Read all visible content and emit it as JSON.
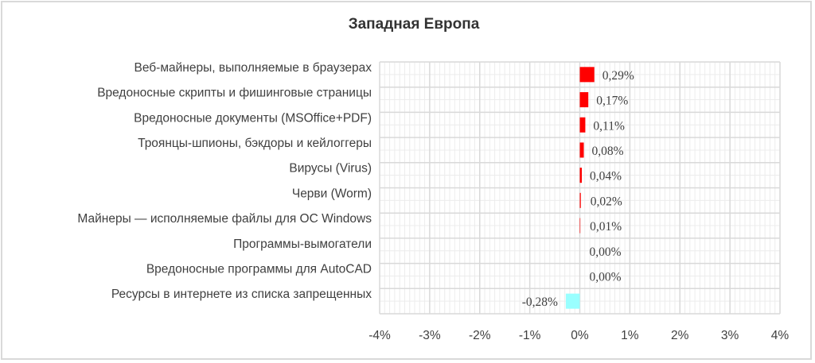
{
  "chart_data": {
    "type": "bar",
    "orientation": "horizontal",
    "title": "Западная Европа",
    "categories": [
      "Веб-майнеры, выполняемые в браузерах",
      "Вредоносные скрипты и фишинговые страницы",
      "Вредоносные документы (MSOffice+PDF)",
      "Троянцы-шпионы, бэкдоры и кейлоггеры",
      "Вирусы (Virus)",
      "Черви (Worm)",
      "Майнеры — исполняемые файлы для ОС Windows",
      "Программы-вымогатели",
      "Вредоносные программы для AutoCAD",
      "Ресурсы в интернете из списка запрещенных"
    ],
    "values": [
      0.29,
      0.17,
      0.11,
      0.08,
      0.04,
      0.02,
      0.01,
      0.0,
      0.0,
      -0.28
    ],
    "data_labels": [
      "0,29%",
      "0,17%",
      "0,11%",
      "0,08%",
      "0,04%",
      "0,02%",
      "0,01%",
      "0,00%",
      "0,00%",
      "-0,28%"
    ],
    "xlim": [
      -4,
      4
    ],
    "xticks": [
      "-4%",
      "-3%",
      "-2%",
      "-1%",
      "0%",
      "1%",
      "2%",
      "3%",
      "4%"
    ],
    "xlabel": "",
    "ylabel": "",
    "grid": true,
    "colors": {
      "positive": "#ff0000",
      "negative": "#99ffff",
      "grid_major": "#d9d9d9",
      "grid_minor": "#ececec"
    }
  }
}
